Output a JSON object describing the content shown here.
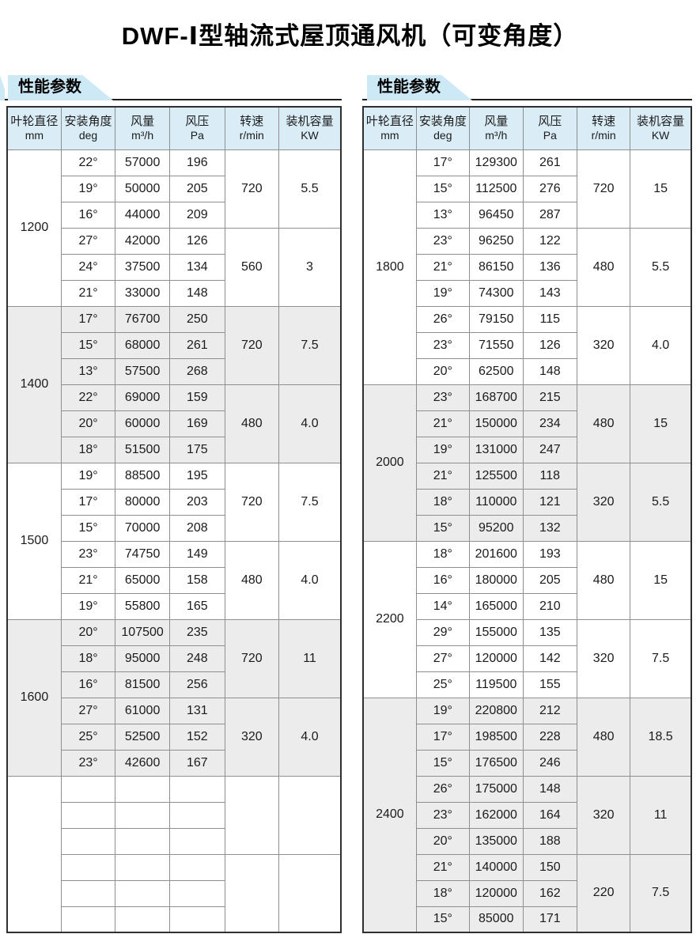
{
  "page_title": "DWF-Ⅰ型轴流式屋顶通风机（可变角度）",
  "section_header_label": "性能参数",
  "colors": {
    "banner_bg": "#cde9f6",
    "header_bg": "#daedf7",
    "row_shaded_bg": "#ececec",
    "border": "#8f8f8f",
    "outer_border": "#2f2f2f",
    "text": "#1b1b1b"
  },
  "table_headers": [
    {
      "name": "叶轮直径",
      "unit": "mm"
    },
    {
      "name": "安装角度",
      "unit": "deg"
    },
    {
      "name": "风量",
      "unit": "m³/h"
    },
    {
      "name": "风压",
      "unit": "Pa"
    },
    {
      "name": "转速",
      "unit": "r/min"
    },
    {
      "name": "装机容量",
      "unit": "KW"
    }
  ],
  "tables": [
    {
      "id": "left",
      "sections": [
        {
          "diameter": "1200",
          "shaded": false,
          "groups": [
            {
              "speed": "720",
              "power": "5.5",
              "rows": [
                [
                  "22°",
                  "57000",
                  "196"
                ],
                [
                  "19°",
                  "50000",
                  "205"
                ],
                [
                  "16°",
                  "44000",
                  "209"
                ]
              ]
            },
            {
              "speed": "560",
              "power": "3",
              "rows": [
                [
                  "27°",
                  "42000",
                  "126"
                ],
                [
                  "24°",
                  "37500",
                  "134"
                ],
                [
                  "21°",
                  "33000",
                  "148"
                ]
              ]
            }
          ]
        },
        {
          "diameter": "1400",
          "shaded": true,
          "groups": [
            {
              "speed": "720",
              "power": "7.5",
              "rows": [
                [
                  "17°",
                  "76700",
                  "250"
                ],
                [
                  "15°",
                  "68000",
                  "261"
                ],
                [
                  "13°",
                  "57500",
                  "268"
                ]
              ]
            },
            {
              "speed": "480",
              "power": "4.0",
              "rows": [
                [
                  "22°",
                  "69000",
                  "159"
                ],
                [
                  "20°",
                  "60000",
                  "169"
                ],
                [
                  "18°",
                  "51500",
                  "175"
                ]
              ]
            }
          ]
        },
        {
          "diameter": "1500",
          "shaded": false,
          "groups": [
            {
              "speed": "720",
              "power": "7.5",
              "rows": [
                [
                  "19°",
                  "88500",
                  "195"
                ],
                [
                  "17°",
                  "80000",
                  "203"
                ],
                [
                  "15°",
                  "70000",
                  "208"
                ]
              ]
            },
            {
              "speed": "480",
              "power": "4.0",
              "rows": [
                [
                  "23°",
                  "74750",
                  "149"
                ],
                [
                  "21°",
                  "65000",
                  "158"
                ],
                [
                  "19°",
                  "55800",
                  "165"
                ]
              ]
            }
          ]
        },
        {
          "diameter": "1600",
          "shaded": true,
          "groups": [
            {
              "speed": "720",
              "power": "11",
              "rows": [
                [
                  "20°",
                  "107500",
                  "235"
                ],
                [
                  "18°",
                  "95000",
                  "248"
                ],
                [
                  "16°",
                  "81500",
                  "256"
                ]
              ]
            },
            {
              "speed": "320",
              "power": "4.0",
              "rows": [
                [
                  "27°",
                  "61000",
                  "131"
                ],
                [
                  "25°",
                  "52500",
                  "152"
                ],
                [
                  "23°",
                  "42600",
                  "167"
                ]
              ]
            }
          ]
        },
        {
          "diameter": "",
          "shaded": false,
          "groups": [
            {
              "speed": "",
              "power": "",
              "rows": [
                [
                  "",
                  "",
                  ""
                ],
                [
                  "",
                  "",
                  ""
                ],
                [
                  "",
                  "",
                  ""
                ]
              ]
            },
            {
              "speed": "",
              "power": "",
              "rows": [
                [
                  "",
                  "",
                  ""
                ],
                [
                  "",
                  "",
                  ""
                ],
                [
                  "",
                  "",
                  ""
                ]
              ]
            }
          ]
        }
      ]
    },
    {
      "id": "right",
      "sections": [
        {
          "diameter": "1800",
          "shaded": false,
          "groups": [
            {
              "speed": "720",
              "power": "15",
              "rows": [
                [
                  "17°",
                  "129300",
                  "261"
                ],
                [
                  "15°",
                  "112500",
                  "276"
                ],
                [
                  "13°",
                  "96450",
                  "287"
                ]
              ]
            },
            {
              "speed": "480",
              "power": "5.5",
              "rows": [
                [
                  "23°",
                  "96250",
                  "122"
                ],
                [
                  "21°",
                  "86150",
                  "136"
                ],
                [
                  "19°",
                  "74300",
                  "143"
                ]
              ]
            },
            {
              "speed": "320",
              "power": "4.0",
              "rows": [
                [
                  "26°",
                  "79150",
                  "115"
                ],
                [
                  "23°",
                  "71550",
                  "126"
                ],
                [
                  "20°",
                  "62500",
                  "148"
                ]
              ]
            }
          ]
        },
        {
          "diameter": "2000",
          "shaded": true,
          "groups": [
            {
              "speed": "480",
              "power": "15",
              "rows": [
                [
                  "23°",
                  "168700",
                  "215"
                ],
                [
                  "21°",
                  "150000",
                  "234"
                ],
                [
                  "19°",
                  "131000",
                  "247"
                ]
              ]
            },
            {
              "speed": "320",
              "power": "5.5",
              "rows": [
                [
                  "21°",
                  "125500",
                  "118"
                ],
                [
                  "18°",
                  "110000",
                  "121"
                ],
                [
                  "15°",
                  "95200",
                  "132"
                ]
              ]
            }
          ]
        },
        {
          "diameter": "2200",
          "shaded": false,
          "groups": [
            {
              "speed": "480",
              "power": "15",
              "rows": [
                [
                  "18°",
                  "201600",
                  "193"
                ],
                [
                  "16°",
                  "180000",
                  "205"
                ],
                [
                  "14°",
                  "165000",
                  "210"
                ]
              ]
            },
            {
              "speed": "320",
              "power": "7.5",
              "rows": [
                [
                  "29°",
                  "155000",
                  "135"
                ],
                [
                  "27°",
                  "120000",
                  "142"
                ],
                [
                  "25°",
                  "119500",
                  "155"
                ]
              ]
            }
          ]
        },
        {
          "diameter": "2400",
          "shaded": true,
          "groups": [
            {
              "speed": "480",
              "power": "18.5",
              "rows": [
                [
                  "19°",
                  "220800",
                  "212"
                ],
                [
                  "17°",
                  "198500",
                  "228"
                ],
                [
                  "15°",
                  "176500",
                  "246"
                ]
              ]
            },
            {
              "speed": "320",
              "power": "11",
              "rows": [
                [
                  "26°",
                  "175000",
                  "148"
                ],
                [
                  "23°",
                  "162000",
                  "164"
                ],
                [
                  "20°",
                  "135000",
                  "188"
                ]
              ]
            },
            {
              "speed": "220",
              "power": "7.5",
              "rows": [
                [
                  "21°",
                  "140000",
                  "150"
                ],
                [
                  "18°",
                  "120000",
                  "162"
                ],
                [
                  "15°",
                  "85000",
                  "171"
                ]
              ]
            }
          ]
        }
      ]
    }
  ]
}
